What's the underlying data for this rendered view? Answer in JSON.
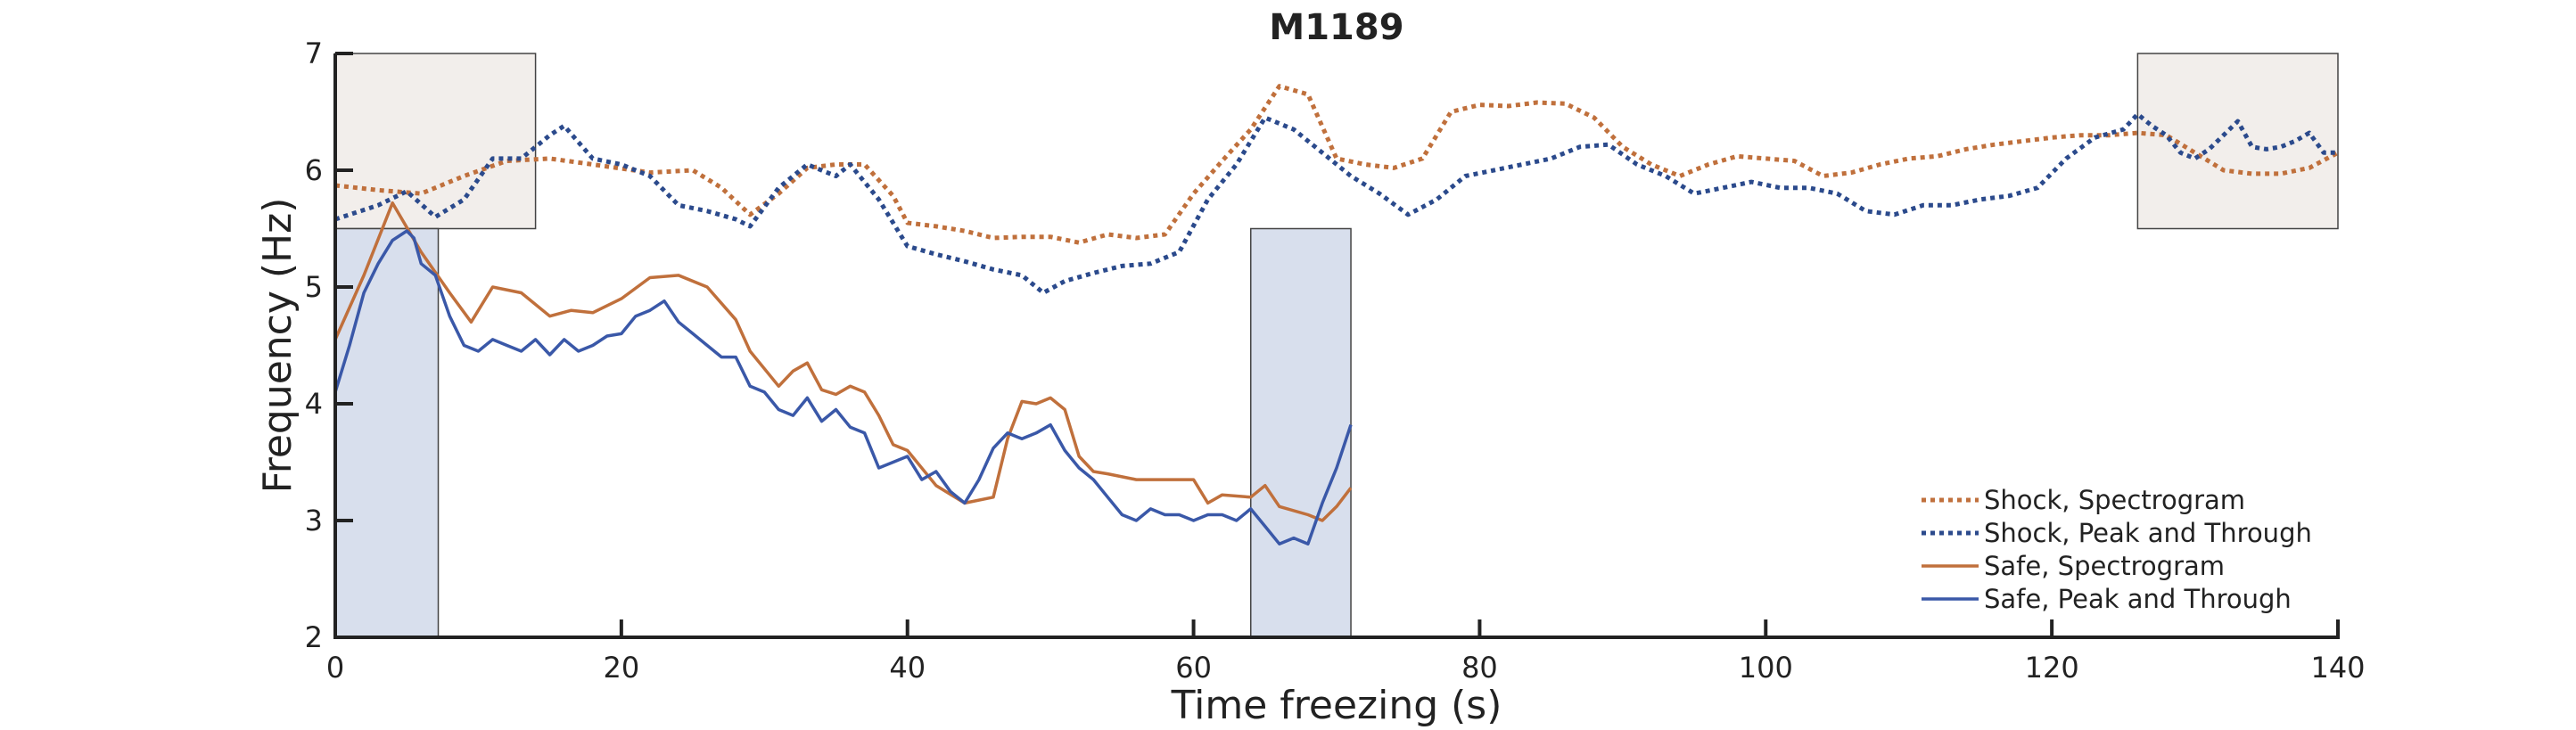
{
  "chart_data": {
    "type": "line",
    "title": "M1189",
    "xlabel": "Time freezing (s)",
    "ylabel": "Frequency (Hz)",
    "xlim": [
      0,
      140
    ],
    "ylim": [
      2,
      7
    ],
    "xticks": [
      "0",
      "20",
      "40",
      "60",
      "80",
      "100",
      "120",
      "140"
    ],
    "yticks": [
      "2",
      "3",
      "4",
      "5",
      "6",
      "7"
    ],
    "grid": false,
    "legend_position": "bottom-right",
    "shaded_regions": [
      {
        "group": "shock",
        "x": [
          0,
          14
        ],
        "y": [
          5.5,
          7
        ],
        "color": "#f2eeeb"
      },
      {
        "group": "shock",
        "x": [
          126,
          140
        ],
        "y": [
          5.5,
          7
        ],
        "color": "#f2eeeb"
      },
      {
        "group": "safe",
        "x": [
          0,
          7.2
        ],
        "y": [
          2,
          5.5
        ],
        "color": "#d8dfed"
      },
      {
        "group": "safe",
        "x": [
          64,
          71
        ],
        "y": [
          2,
          5.5
        ],
        "color": "#d8dfed"
      }
    ],
    "series": [
      {
        "name": "Shock, Spectrogram",
        "color": "#c0703c",
        "style": "dotted",
        "x": [
          0,
          3,
          6,
          9,
          12,
          15,
          18,
          22,
          25,
          27,
          29,
          31,
          33,
          35,
          37,
          39,
          40,
          42,
          44,
          46,
          48,
          50,
          52,
          54,
          56,
          58,
          60,
          62,
          64,
          66,
          68,
          70,
          72,
          74,
          76,
          78,
          80,
          82,
          84,
          86,
          88,
          90,
          92,
          94,
          96,
          98,
          100,
          102,
          104,
          106,
          108,
          110,
          112,
          114,
          116,
          118,
          120,
          122,
          124,
          126,
          128,
          130,
          132,
          134,
          136,
          138,
          140
        ],
        "y": [
          5.87,
          5.83,
          5.8,
          5.95,
          6.08,
          6.1,
          6.05,
          5.98,
          6.0,
          5.85,
          5.62,
          5.8,
          6.02,
          6.05,
          6.05,
          5.78,
          5.55,
          5.52,
          5.48,
          5.42,
          5.43,
          5.43,
          5.38,
          5.45,
          5.42,
          5.45,
          5.8,
          6.08,
          6.35,
          6.72,
          6.65,
          6.1,
          6.05,
          6.02,
          6.1,
          6.5,
          6.56,
          6.55,
          6.58,
          6.57,
          6.45,
          6.2,
          6.05,
          5.95,
          6.05,
          6.12,
          6.1,
          6.08,
          5.95,
          5.98,
          6.05,
          6.1,
          6.12,
          6.18,
          6.22,
          6.25,
          6.28,
          6.3,
          6.3,
          6.32,
          6.3,
          6.15,
          6.0,
          5.97,
          5.97,
          6.02,
          6.15
        ]
      },
      {
        "name": "Shock, Peak and Through",
        "color": "#2b4a8c",
        "style": "dotted",
        "x": [
          0,
          3,
          5,
          7,
          9,
          11,
          13,
          15,
          16,
          18,
          20,
          22,
          24,
          26,
          28,
          29,
          31,
          33,
          35,
          36,
          38,
          40,
          42,
          44,
          46,
          48,
          49.5,
          51,
          53,
          55,
          57,
          59,
          61,
          63,
          65,
          67,
          69,
          71,
          73,
          75,
          77,
          79,
          81,
          83,
          85,
          87,
          89,
          91,
          93,
          95,
          97,
          99,
          101,
          103,
          105,
          107,
          109,
          111,
          113,
          115,
          117,
          119,
          121,
          123,
          125,
          126,
          127,
          128,
          129,
          130,
          131,
          132,
          133,
          134,
          135,
          136,
          137,
          138,
          139,
          140
        ],
        "y": [
          5.58,
          5.7,
          5.82,
          5.6,
          5.75,
          6.1,
          6.1,
          6.3,
          6.38,
          6.1,
          6.05,
          5.95,
          5.7,
          5.65,
          5.58,
          5.52,
          5.85,
          6.05,
          5.95,
          6.05,
          5.75,
          5.35,
          5.28,
          5.22,
          5.15,
          5.1,
          4.95,
          5.05,
          5.12,
          5.18,
          5.2,
          5.3,
          5.75,
          6.05,
          6.45,
          6.35,
          6.15,
          5.95,
          5.8,
          5.62,
          5.75,
          5.95,
          6.0,
          6.05,
          6.1,
          6.2,
          6.22,
          6.05,
          5.95,
          5.8,
          5.85,
          5.9,
          5.85,
          5.85,
          5.8,
          5.65,
          5.62,
          5.7,
          5.7,
          5.75,
          5.78,
          5.85,
          6.1,
          6.28,
          6.35,
          6.48,
          6.38,
          6.3,
          6.15,
          6.1,
          6.18,
          6.3,
          6.42,
          6.2,
          6.18,
          6.2,
          6.25,
          6.32,
          6.15,
          6.15
        ]
      },
      {
        "name": "Safe, Spectrogram",
        "color": "#c0703c",
        "style": "solid",
        "x": [
          0,
          2,
          4,
          6,
          8,
          9.5,
          11,
          13,
          15,
          16.5,
          18,
          20,
          22,
          24,
          26,
          28,
          29,
          30,
          31,
          32,
          33,
          34,
          35,
          36,
          37,
          38,
          39,
          40,
          42,
          44,
          46,
          47,
          48,
          49,
          50,
          51,
          52,
          53,
          54,
          56,
          58,
          60,
          61,
          62,
          64,
          65,
          66,
          68,
          69,
          70,
          71
        ],
        "y": [
          4.55,
          5.1,
          5.72,
          5.3,
          4.95,
          4.7,
          5.0,
          4.95,
          4.75,
          4.8,
          4.78,
          4.9,
          5.08,
          5.1,
          5.0,
          4.72,
          4.45,
          4.3,
          4.15,
          4.28,
          4.35,
          4.12,
          4.08,
          4.15,
          4.1,
          3.9,
          3.65,
          3.6,
          3.3,
          3.15,
          3.2,
          3.7,
          4.02,
          4.0,
          4.05,
          3.95,
          3.55,
          3.42,
          3.4,
          3.35,
          3.35,
          3.35,
          3.15,
          3.22,
          3.2,
          3.3,
          3.12,
          3.05,
          3.0,
          3.12,
          3.28
        ]
      },
      {
        "name": "Safe, Peak and Through",
        "color": "#3a58a8",
        "style": "solid",
        "x": [
          0,
          1,
          2,
          3,
          4,
          5,
          5.5,
          6,
          7,
          8,
          9,
          10,
          11,
          12,
          13,
          14,
          15,
          16,
          17,
          18,
          19,
          20,
          21,
          22,
          23,
          24,
          25,
          26,
          27,
          28,
          29,
          30,
          31,
          32,
          33,
          34,
          35,
          36,
          37,
          38,
          39,
          40,
          41,
          42,
          43,
          44,
          45,
          46,
          47,
          48,
          49,
          50,
          51,
          52,
          53,
          54,
          55,
          56,
          57,
          58,
          59,
          60,
          61,
          62,
          63,
          64,
          65,
          66,
          67,
          68,
          69,
          70,
          71
        ],
        "y": [
          4.1,
          4.5,
          4.95,
          5.2,
          5.4,
          5.48,
          5.42,
          5.2,
          5.1,
          4.75,
          4.5,
          4.45,
          4.55,
          4.5,
          4.45,
          4.55,
          4.42,
          4.55,
          4.45,
          4.5,
          4.58,
          4.6,
          4.75,
          4.8,
          4.88,
          4.7,
          4.6,
          4.5,
          4.4,
          4.4,
          4.15,
          4.1,
          3.95,
          3.9,
          4.05,
          3.85,
          3.95,
          3.8,
          3.75,
          3.45,
          3.5,
          3.55,
          3.35,
          3.42,
          3.25,
          3.15,
          3.35,
          3.62,
          3.75,
          3.7,
          3.75,
          3.82,
          3.6,
          3.45,
          3.35,
          3.2,
          3.05,
          3.0,
          3.1,
          3.05,
          3.05,
          3.0,
          3.05,
          3.05,
          3.0,
          3.1,
          2.95,
          2.8,
          2.85,
          2.8,
          3.15,
          3.45,
          3.82
        ]
      }
    ]
  }
}
